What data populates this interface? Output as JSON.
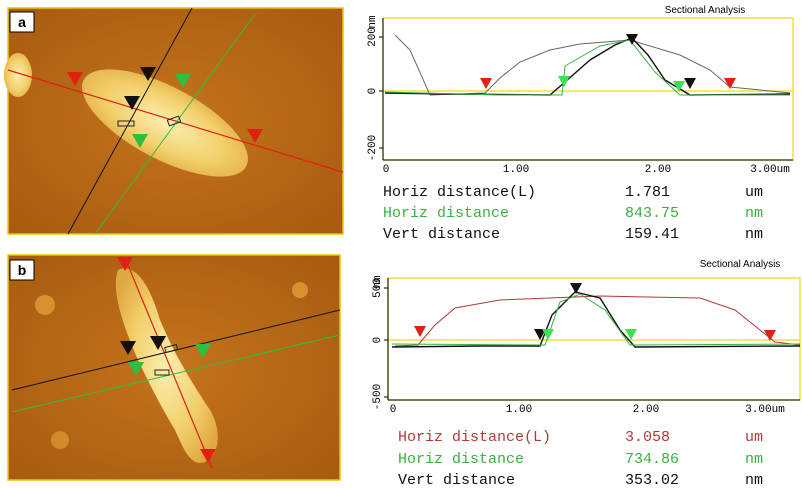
{
  "panels": [
    {
      "label": "a",
      "title": "Sectional Analysis",
      "y_unit": "nm",
      "y_ticks": [
        "200",
        "0",
        "-200"
      ],
      "x_ticks": [
        "0",
        "1.00",
        "2.00",
        "3.00um"
      ],
      "measurements": [
        {
          "name": "Horiz distance(L)",
          "value": "1.781",
          "unit": "um"
        },
        {
          "name": "Horiz distance",
          "value": "843.75",
          "unit": "nm"
        },
        {
          "name": "Vert distance",
          "value": "159.41",
          "unit": "nm"
        }
      ]
    },
    {
      "label": "b",
      "title": "Sectional Analysis",
      "y_unit": "nm",
      "y_ticks": [
        "500",
        "0",
        "-500"
      ],
      "x_ticks": [
        "0",
        "1.00",
        "2.00",
        "3.00um"
      ],
      "measurements": [
        {
          "name": "Horiz distance(L)",
          "value": "3.058",
          "unit": "um"
        },
        {
          "name": "Horiz distance",
          "value": "734.86",
          "unit": "nm"
        },
        {
          "name": "Vert distance",
          "value": "353.02",
          "unit": "nm"
        }
      ]
    }
  ]
}
